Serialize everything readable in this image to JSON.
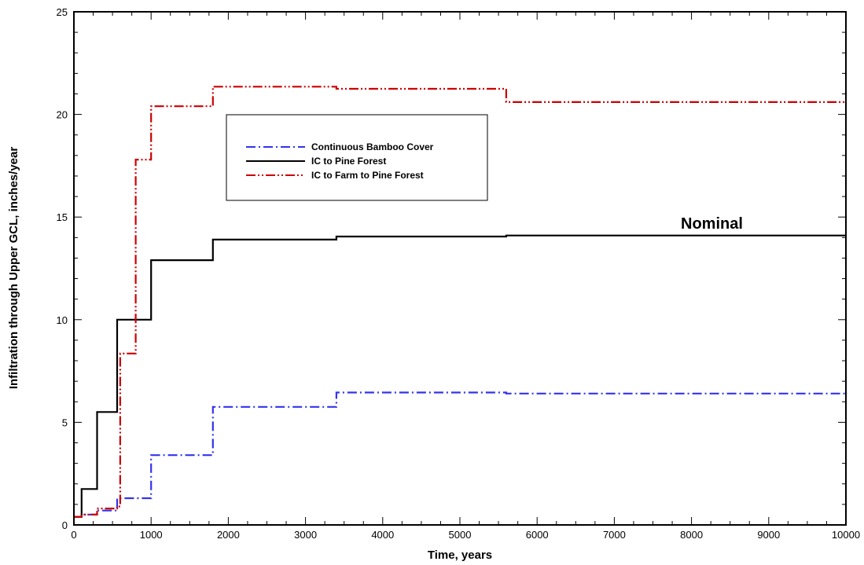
{
  "chart_data": {
    "type": "line",
    "xlabel": "Time, years",
    "ylabel": "Infiltration through Upper GCL, inches/year",
    "xlim": [
      0,
      10000
    ],
    "ylim": [
      0,
      25
    ],
    "x_ticks": [
      0,
      1000,
      2000,
      3000,
      4000,
      5000,
      6000,
      7000,
      8000,
      9000,
      10000
    ],
    "y_ticks": [
      0,
      5,
      10,
      15,
      20,
      25
    ],
    "grid": false,
    "legend_position": "upper-left",
    "annotation": "Nominal",
    "series": [
      {
        "name": "Continuous Bamboo Cover",
        "color": "#3333ee",
        "dash": "dash-dot",
        "x": [
          0,
          100,
          100,
          300,
          300,
          560,
          560,
          1000,
          1000,
          1800,
          1800,
          3400,
          3400,
          5600,
          5600,
          10000
        ],
        "y": [
          0.4,
          0.4,
          0.5,
          0.5,
          0.7,
          0.7,
          1.3,
          1.3,
          3.4,
          3.4,
          5.75,
          5.75,
          6.45,
          6.45,
          6.4,
          6.4
        ]
      },
      {
        "name": "IC to Pine Forest",
        "color": "#000000",
        "dash": "solid",
        "x": [
          0,
          100,
          100,
          300,
          300,
          560,
          560,
          1000,
          1000,
          1800,
          1800,
          3400,
          3400,
          5600,
          5600,
          10000
        ],
        "y": [
          0.4,
          0.4,
          1.75,
          1.75,
          5.5,
          5.5,
          10.0,
          10.0,
          12.9,
          12.9,
          13.9,
          13.9,
          14.05,
          14.05,
          14.1,
          14.1
        ]
      },
      {
        "name": "IC to Farm to Pine Forest",
        "color": "#cc0000",
        "dash": "dash-dot-dot",
        "x": [
          0,
          100,
          100,
          300,
          300,
          560,
          560,
          600,
          600,
          800,
          800,
          1000,
          1000,
          1800,
          1800,
          3400,
          3400,
          5600,
          5600,
          10000
        ],
        "y": [
          0.4,
          0.4,
          0.5,
          0.5,
          0.8,
          0.8,
          0.9,
          0.9,
          8.35,
          8.35,
          17.8,
          17.8,
          20.4,
          20.4,
          21.35,
          21.35,
          21.25,
          21.25,
          20.6,
          20.6
        ]
      }
    ]
  }
}
